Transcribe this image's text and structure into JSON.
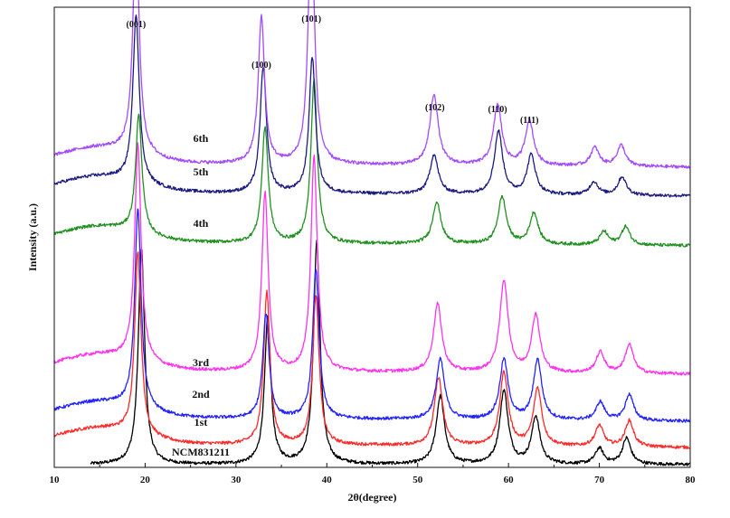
{
  "chart_data": {
    "type": "line",
    "xlabel": "2θ(degree)",
    "ylabel": "Intensity (a.u.)",
    "xlim": [
      10,
      80
    ],
    "x_ticks": [
      "10",
      "20",
      "30",
      "40",
      "50",
      "60",
      "70",
      "80"
    ],
    "grid": false,
    "legend": "inline",
    "peak_labels": [
      {
        "text": "(001)",
        "x": 19.0
      },
      {
        "text": "(100)",
        "x": 32.8
      },
      {
        "text": "(101)",
        "x": 38.3
      },
      {
        "text": "(102)",
        "x": 51.9
      },
      {
        "text": "(110)",
        "x": 58.8
      },
      {
        "text": "(111)",
        "x": 62.3
      }
    ],
    "series": [
      {
        "name": "NCM831211",
        "color": "#000000",
        "x_start": 14,
        "base": 0.0,
        "peaks": [
          [
            19.6,
            0.82
          ],
          [
            33.5,
            0.56
          ],
          [
            38.9,
            0.85
          ],
          [
            52.5,
            0.26
          ],
          [
            59.5,
            0.28
          ],
          [
            63.0,
            0.18
          ],
          [
            70.0,
            0.06
          ],
          [
            73.0,
            0.1
          ]
        ]
      },
      {
        "name": "1st",
        "color": "#ff2a2a",
        "x_start": 10,
        "base": 0.08,
        "peaks": [
          [
            19.2,
            0.7
          ],
          [
            33.4,
            0.58
          ],
          [
            38.8,
            0.57
          ],
          [
            52.3,
            0.26
          ],
          [
            59.5,
            0.28
          ],
          [
            63.2,
            0.22
          ],
          [
            70.0,
            0.08
          ],
          [
            73.3,
            0.1
          ]
        ]
      },
      {
        "name": "2nd",
        "color": "#2323ff",
        "x_start": 10,
        "base": 0.18,
        "peaks": [
          [
            19.2,
            0.76
          ],
          [
            33.3,
            0.4
          ],
          [
            38.8,
            0.57
          ],
          [
            52.5,
            0.23
          ],
          [
            59.5,
            0.23
          ],
          [
            63.2,
            0.23
          ],
          [
            70.1,
            0.07
          ],
          [
            73.3,
            0.1
          ]
        ]
      },
      {
        "name": "3rd",
        "color": "#ff33ee",
        "x_start": 10,
        "base": 0.36,
        "peaks": [
          [
            19.2,
            0.83
          ],
          [
            33.2,
            0.68
          ],
          [
            38.6,
            0.82
          ],
          [
            52.2,
            0.26
          ],
          [
            59.5,
            0.35
          ],
          [
            63.0,
            0.22
          ],
          [
            70.1,
            0.08
          ],
          [
            73.3,
            0.11
          ]
        ]
      },
      {
        "name": "4th",
        "color": "#219221",
        "x_start": 10,
        "base": 0.85,
        "peaks": [
          [
            19.3,
            0.45
          ],
          [
            33.2,
            0.44
          ],
          [
            38.6,
            0.62
          ],
          [
            52.1,
            0.16
          ],
          [
            59.3,
            0.18
          ],
          [
            62.8,
            0.12
          ],
          [
            70.5,
            0.05
          ],
          [
            72.9,
            0.07
          ]
        ]
      },
      {
        "name": "5th",
        "color": "#1c1c80",
        "x_start": 10,
        "base": 1.04,
        "peaks": [
          [
            19.0,
            0.64
          ],
          [
            33.0,
            0.48
          ],
          [
            38.4,
            0.52
          ],
          [
            51.8,
            0.15
          ],
          [
            58.9,
            0.24
          ],
          [
            62.5,
            0.15
          ],
          [
            69.4,
            0.05
          ],
          [
            72.5,
            0.07
          ]
        ]
      },
      {
        "name": "6th",
        "color": "#a34bff",
        "x_start": 10,
        "base": 1.15,
        "peaks": [
          [
            19.0,
            0.85
          ],
          [
            32.8,
            0.56
          ],
          [
            38.3,
            0.94
          ],
          [
            51.8,
            0.27
          ],
          [
            58.8,
            0.23
          ],
          [
            62.3,
            0.17
          ],
          [
            69.5,
            0.07
          ],
          [
            72.4,
            0.08
          ]
        ]
      }
    ]
  }
}
